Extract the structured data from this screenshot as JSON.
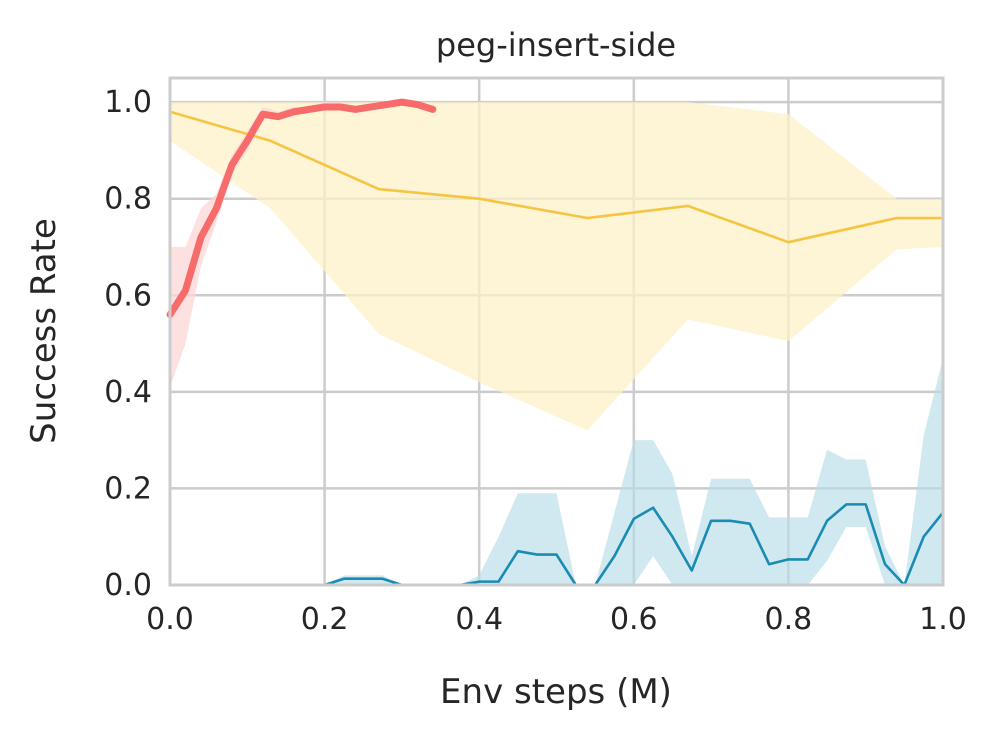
{
  "chart_data": {
    "type": "line",
    "title": "peg-insert-side",
    "xlabel": "Env steps (M)",
    "ylabel": "Success Rate",
    "xlim": [
      0,
      1.0
    ],
    "ylim": [
      0,
      1.05
    ],
    "xticks": [
      0.0,
      0.2,
      0.4,
      0.6,
      0.8,
      1.0
    ],
    "xtick_labels": [
      "0.0",
      "0.2",
      "0.4",
      "0.6",
      "0.8",
      "1.0"
    ],
    "yticks": [
      0.0,
      0.2,
      0.4,
      0.6,
      0.8,
      1.0
    ],
    "ytick_labels": [
      "0.0",
      "0.2",
      "0.4",
      "0.6",
      "0.8",
      "1.0"
    ],
    "grid": true,
    "series": [
      {
        "name": "yellow",
        "color": "#f5c542",
        "band_color": "#fdf0c8",
        "x": [
          0.0,
          0.13,
          0.27,
          0.4,
          0.54,
          0.67,
          0.8,
          0.94,
          1.0
        ],
        "y": [
          0.98,
          0.92,
          0.82,
          0.8,
          0.76,
          0.785,
          0.71,
          0.76,
          0.76
        ],
        "lower": [
          0.92,
          0.78,
          0.52,
          0.42,
          0.32,
          0.55,
          0.505,
          0.695,
          0.7
        ],
        "upper": [
          1.0,
          1.0,
          1.0,
          1.0,
          1.0,
          1.0,
          0.975,
          0.8,
          0.8
        ]
      },
      {
        "name": "blue",
        "color": "#1a8bb3",
        "band_color": "#b7dde8",
        "x": [
          0.0,
          0.2,
          0.225,
          0.275,
          0.3,
          0.375,
          0.4,
          0.425,
          0.45,
          0.475,
          0.5,
          0.525,
          0.55,
          0.575,
          0.6,
          0.625,
          0.65,
          0.675,
          0.7,
          0.725,
          0.75,
          0.775,
          0.8,
          0.825,
          0.85,
          0.875,
          0.9,
          0.925,
          0.95,
          0.975,
          1.0
        ],
        "y": [
          0.0,
          0.0,
          0.013,
          0.013,
          0.0,
          0.0,
          0.007,
          0.007,
          0.07,
          0.063,
          0.063,
          0.0,
          0.0,
          0.06,
          0.137,
          0.16,
          0.1,
          0.03,
          0.133,
          0.133,
          0.127,
          0.043,
          0.053,
          0.053,
          0.133,
          0.167,
          0.167,
          0.043,
          0.0,
          0.1,
          0.15
        ],
        "lower": [
          0.0,
          0.0,
          0.0,
          0.0,
          0.0,
          0.0,
          0.0,
          0.0,
          0.0,
          0.0,
          0.0,
          0.0,
          0.0,
          0.0,
          0.0,
          0.06,
          0.0,
          0.0,
          0.0,
          0.0,
          0.0,
          0.0,
          0.0,
          0.0,
          0.05,
          0.12,
          0.12,
          0.0,
          0.0,
          0.0,
          0.0
        ],
        "upper": [
          0.0,
          0.0,
          0.02,
          0.02,
          0.0,
          0.0,
          0.02,
          0.1,
          0.19,
          0.19,
          0.19,
          0.0,
          0.0,
          0.15,
          0.3,
          0.3,
          0.23,
          0.06,
          0.22,
          0.22,
          0.22,
          0.14,
          0.14,
          0.14,
          0.28,
          0.26,
          0.26,
          0.08,
          0.0,
          0.31,
          0.47
        ]
      },
      {
        "name": "red",
        "color": "#f76b6b",
        "band_color": "#fcd6d6",
        "x": [
          0.0,
          0.02,
          0.04,
          0.06,
          0.08,
          0.1,
          0.12,
          0.14,
          0.16,
          0.18,
          0.2,
          0.22,
          0.24,
          0.26,
          0.28,
          0.3,
          0.32,
          0.34
        ],
        "y": [
          0.56,
          0.61,
          0.72,
          0.78,
          0.87,
          0.92,
          0.975,
          0.97,
          0.98,
          0.985,
          0.99,
          0.99,
          0.985,
          0.99,
          0.995,
          1.0,
          0.995,
          0.985
        ],
        "lower": [
          0.41,
          0.5,
          0.66,
          0.75,
          0.85,
          0.9,
          0.965,
          0.965,
          0.975,
          0.98,
          0.985,
          0.985,
          0.98,
          0.985,
          0.99,
          0.995,
          0.99,
          0.98
        ],
        "upper": [
          0.7,
          0.7,
          0.78,
          0.81,
          0.89,
          0.94,
          0.99,
          0.98,
          0.99,
          0.99,
          1.0,
          1.0,
          0.99,
          0.995,
          1.0,
          1.0,
          1.0,
          0.99
        ]
      }
    ]
  }
}
